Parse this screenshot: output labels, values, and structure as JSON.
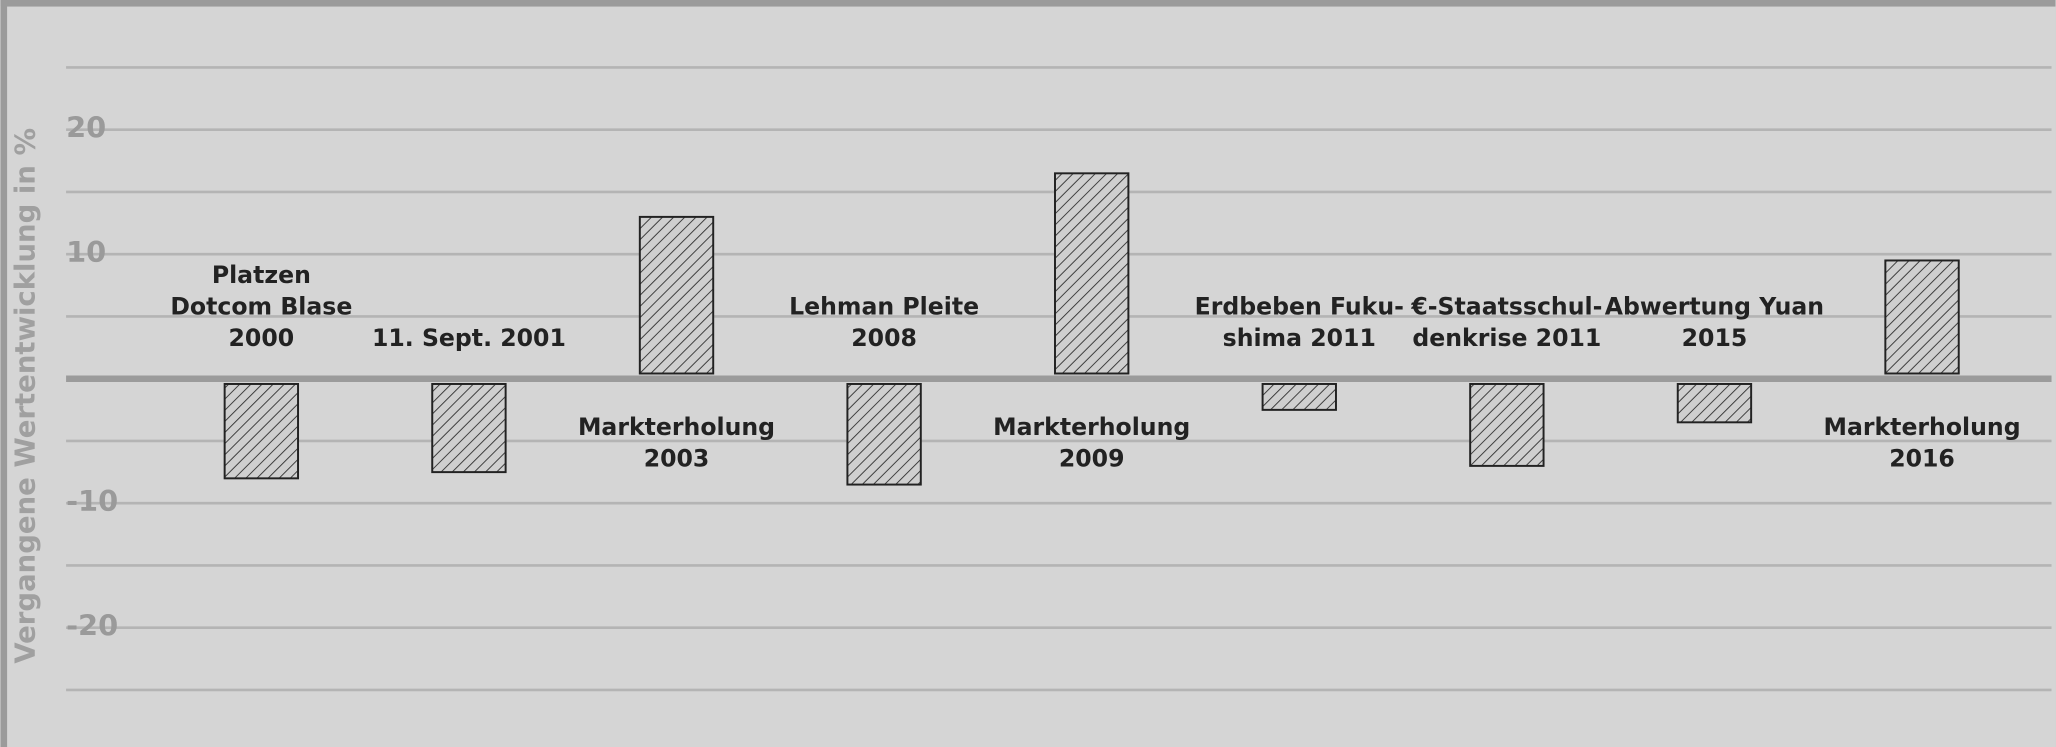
{
  "chart_data": {
    "type": "bar",
    "y_axis_label": "Vergangene Wertentwicklung in %",
    "categories": [
      [
        "Platzen",
        "Dotcom Blase",
        "2000"
      ],
      [
        "11. Sept. 2001"
      ],
      [
        "Markterholung",
        "2003"
      ],
      [
        "Lehman Pleite",
        "2008"
      ],
      [
        "Markterholung",
        "2009"
      ],
      [
        "Erdbeben Fuku-",
        "shima 2011"
      ],
      [
        "€-Staatsschul-",
        "denkrise 2011"
      ],
      [
        "Abwertung Yuan",
        "2015"
      ],
      [
        "Markterholung",
        "2016"
      ]
    ],
    "values": [
      -8,
      -7.5,
      13,
      -8.5,
      16.5,
      -2.5,
      -7,
      -3.5,
      9.5
    ],
    "color": "#c8c8c8",
    "ylim": [
      -30,
      30
    ],
    "yticks": [
      -20,
      -10,
      10,
      20
    ],
    "minor_yticks": [
      -25,
      -15,
      -5,
      5,
      15,
      25
    ],
    "grid": true
  }
}
